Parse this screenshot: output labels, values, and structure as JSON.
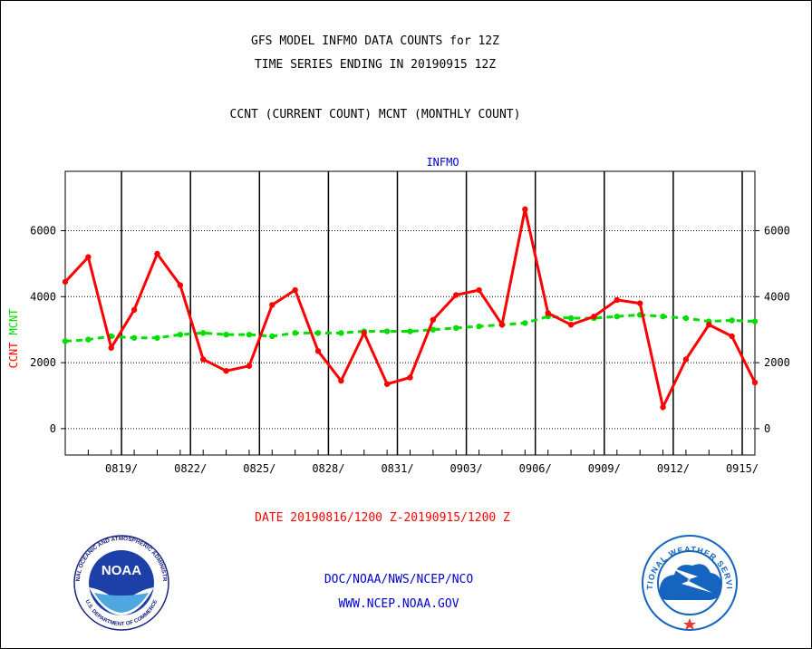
{
  "header": {
    "title_line1": "GFS MODEL INFMO DATA COUNTS for 12Z",
    "title_line2": "TIME SERIES ENDING IN 20190915 12Z",
    "subtitle": "CCNT (CURRENT COUNT) MCNT (MONTHLY COUNT)"
  },
  "footer": {
    "date_range": "DATE 20190816/1200 Z-20190915/1200 Z",
    "org": "DOC/NOAA/NWS/NCEP/NCO",
    "url": "WWW.NCEP.NOAA.GOV"
  },
  "logos": {
    "noaa_text": "NOAA",
    "noaa_ring": "NATIONAL OCEANIC AND ATMOSPHERIC ADMINISTRATION",
    "noaa_ring_bottom": "U.S. DEPARTMENT OF COMMERCE",
    "nws_ring": "NATIONAL WEATHER SERVICE"
  },
  "colors": {
    "ccnt": "#ff0000",
    "mcnt": "#00dd00",
    "title_blue": "#0000cc",
    "frame": "#000000"
  },
  "chart_data": {
    "type": "line",
    "title": "INFMO",
    "ylabel_left_1": "CCNT",
    "ylabel_left_2": "MCNT",
    "ylim": [
      -800,
      7800
    ],
    "yticks": [
      0,
      2000,
      4000,
      6000
    ],
    "xlim": [
      0,
      30.0
    ],
    "xticks": [
      {
        "x": 3,
        "label": "0819/"
      },
      {
        "x": 6,
        "label": "0822/"
      },
      {
        "x": 9,
        "label": "0825/"
      },
      {
        "x": 12,
        "label": "0828/"
      },
      {
        "x": 15,
        "label": "0831/"
      },
      {
        "x": 18,
        "label": "0903/"
      },
      {
        "x": 21,
        "label": "0906/"
      },
      {
        "x": 24,
        "label": "0909/"
      },
      {
        "x": 27,
        "label": "0912/"
      },
      {
        "x": 30,
        "label": "0915/"
      }
    ],
    "grid": true,
    "series": [
      {
        "name": "CCNT",
        "color": "#ff0000",
        "x": [
          0,
          1,
          2,
          3,
          4,
          5,
          6,
          7,
          8,
          9,
          10,
          11,
          12,
          13,
          14,
          15,
          16,
          17,
          18,
          19,
          20,
          21,
          22,
          23,
          24,
          25,
          26,
          27,
          28,
          29,
          30
        ],
        "values": [
          4450,
          5200,
          2450,
          3600,
          5300,
          4350,
          2100,
          1750,
          1900,
          3750,
          4200,
          2350,
          1450,
          2900,
          1350,
          1550,
          3300,
          4050,
          4200,
          3150,
          6650,
          3500,
          3150,
          3400,
          3900,
          3800,
          650,
          2100,
          3150,
          2800,
          1400
        ]
      },
      {
        "name": "MCNT",
        "color": "#00dd00",
        "x": [
          0,
          1,
          2,
          3,
          4,
          5,
          6,
          7,
          8,
          9,
          10,
          11,
          12,
          13,
          14,
          15,
          16,
          17,
          18,
          19,
          20,
          21,
          22,
          23,
          24,
          25,
          26,
          27,
          28,
          29,
          30
        ],
        "values": [
          2650,
          2700,
          2800,
          2750,
          2750,
          2850,
          2900,
          2850,
          2850,
          2800,
          2900,
          2900,
          2900,
          2950,
          2950,
          2950,
          3000,
          3050,
          3100,
          3150,
          3200,
          3400,
          3350,
          3350,
          3400,
          3450,
          3400,
          3350,
          3250,
          3280,
          3250
        ]
      }
    ]
  }
}
